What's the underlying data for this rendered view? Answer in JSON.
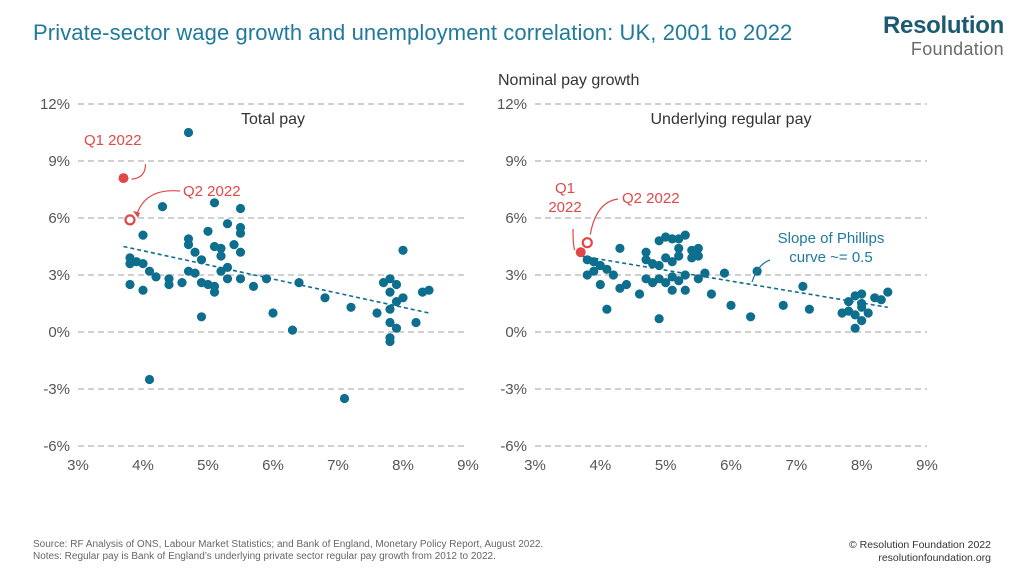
{
  "header": {
    "title": "Private-sector wage growth and unemployment correlation: UK, 2001 to 2022",
    "logo_line1": "Resolution",
    "logo_line2": "Foundation"
  },
  "shared_ylabel": "Nominal pay growth",
  "footer": {
    "source": "Source:  RF Analysis of ONS, Labour Market Statistics; and Bank of England, Monetary Policy Report, August 2022.",
    "notes": "Notes: Regular pay is Bank of England’s underlying private sector regular pay growth from 2012 to 2022.",
    "copyright": "© Resolution Foundation 2022",
    "website": "resolutionfoundation.org"
  },
  "colors": {
    "point": "#0e6e8e",
    "highlight": "#e04848",
    "trend": "#0e6e8e",
    "grid": "#b5b5b5",
    "axis_text": "#555555",
    "title": "#1f7a9c"
  },
  "chart_data": [
    {
      "type": "scatter",
      "title": "Total pay",
      "xlabel": "",
      "ylabel": "",
      "xlim": [
        3,
        9
      ],
      "ylim": [
        -6,
        12
      ],
      "x_ticks": [
        3,
        4,
        5,
        6,
        7,
        8,
        9
      ],
      "x_tick_labels": [
        "3%",
        "4%",
        "5%",
        "6%",
        "7%",
        "8%",
        "9%"
      ],
      "y_ticks": [
        -6,
        -3,
        0,
        3,
        6,
        9,
        12
      ],
      "y_tick_labels": [
        "-6%",
        "-3%",
        "0%",
        "3%",
        "6%",
        "9%",
        "12%"
      ],
      "grid": "horizontal dashed",
      "points": [
        [
          4.7,
          10.5
        ],
        [
          4.3,
          6.6
        ],
        [
          5.1,
          6.8
        ],
        [
          5.5,
          6.5
        ],
        [
          5.3,
          5.7
        ],
        [
          5.5,
          5.5
        ],
        [
          5.5,
          5.2
        ],
        [
          5.0,
          5.3
        ],
        [
          4.7,
          4.9
        ],
        [
          4.7,
          4.6
        ],
        [
          4.8,
          4.2
        ],
        [
          4.9,
          3.8
        ],
        [
          5.1,
          4.5
        ],
        [
          5.2,
          4.4
        ],
        [
          5.2,
          4.0
        ],
        [
          5.4,
          4.6
        ],
        [
          5.5,
          4.2
        ],
        [
          5.3,
          3.4
        ],
        [
          4.0,
          5.1
        ],
        [
          3.8,
          3.9
        ],
        [
          3.9,
          3.7
        ],
        [
          4.0,
          3.6
        ],
        [
          3.8,
          3.6
        ],
        [
          4.1,
          3.2
        ],
        [
          4.2,
          2.9
        ],
        [
          4.4,
          2.8
        ],
        [
          4.4,
          2.5
        ],
        [
          4.6,
          2.6
        ],
        [
          4.7,
          3.2
        ],
        [
          4.8,
          3.1
        ],
        [
          4.9,
          2.6
        ],
        [
          5.0,
          2.5
        ],
        [
          5.1,
          2.4
        ],
        [
          5.1,
          2.1
        ],
        [
          5.3,
          2.8
        ],
        [
          5.2,
          3.2
        ],
        [
          5.5,
          2.8
        ],
        [
          5.7,
          2.4
        ],
        [
          5.9,
          2.8
        ],
        [
          6.0,
          1.0
        ],
        [
          6.4,
          2.6
        ],
        [
          3.8,
          2.5
        ],
        [
          4.0,
          2.2
        ],
        [
          4.9,
          0.8
        ],
        [
          6.8,
          1.8
        ],
        [
          7.2,
          1.3
        ],
        [
          7.6,
          1.0
        ],
        [
          7.7,
          2.6
        ],
        [
          7.8,
          2.1
        ],
        [
          7.8,
          2.8
        ],
        [
          7.9,
          2.5
        ],
        [
          7.9,
          1.6
        ],
        [
          8.0,
          1.8
        ],
        [
          8.0,
          4.3
        ],
        [
          7.8,
          1.2
        ],
        [
          7.8,
          0.5
        ],
        [
          7.9,
          0.2
        ],
        [
          8.2,
          0.5
        ],
        [
          8.3,
          2.1
        ],
        [
          8.4,
          2.2
        ],
        [
          7.8,
          -0.3
        ],
        [
          7.8,
          -0.5
        ],
        [
          6.3,
          0.1
        ],
        [
          4.1,
          -2.5
        ],
        [
          7.1,
          -3.5
        ]
      ],
      "highlights": [
        {
          "label": "Q1 2022",
          "x": 3.7,
          "y": 8.1,
          "style": "filled"
        },
        {
          "label": "Q2 2022",
          "x": 3.8,
          "y": 5.9,
          "style": "hollow"
        }
      ],
      "trendline": {
        "x": [
          3.7,
          8.4
        ],
        "y": [
          4.5,
          1.0
        ]
      }
    },
    {
      "type": "scatter",
      "title": "Underlying regular pay",
      "xlabel": "",
      "ylabel": "Nominal pay growth",
      "xlim": [
        3,
        9
      ],
      "ylim": [
        -6,
        12
      ],
      "x_ticks": [
        3,
        4,
        5,
        6,
        7,
        8,
        9
      ],
      "x_tick_labels": [
        "3%",
        "4%",
        "5%",
        "6%",
        "7%",
        "8%",
        "9%"
      ],
      "y_ticks": [
        -6,
        -3,
        0,
        3,
        6,
        9,
        12
      ],
      "y_tick_labels": [
        "-6%",
        "-3%",
        "0%",
        "3%",
        "6%",
        "9%",
        "12%"
      ],
      "grid": "horizontal dashed",
      "points": [
        [
          4.9,
          4.8
        ],
        [
          5.0,
          5.0
        ],
        [
          5.1,
          4.9
        ],
        [
          5.2,
          4.9
        ],
        [
          5.3,
          5.1
        ],
        [
          5.2,
          4.4
        ],
        [
          5.4,
          4.3
        ],
        [
          5.5,
          4.4
        ],
        [
          5.5,
          4.0
        ],
        [
          5.4,
          3.9
        ],
        [
          4.3,
          4.4
        ],
        [
          4.7,
          4.2
        ],
        [
          4.7,
          3.8
        ],
        [
          4.8,
          3.6
        ],
        [
          4.9,
          3.5
        ],
        [
          5.0,
          3.9
        ],
        [
          5.1,
          3.7
        ],
        [
          5.2,
          4.0
        ],
        [
          3.8,
          3.8
        ],
        [
          3.9,
          3.7
        ],
        [
          4.0,
          3.5
        ],
        [
          4.1,
          3.3
        ],
        [
          4.2,
          3.0
        ],
        [
          3.9,
          3.2
        ],
        [
          3.8,
          3.0
        ],
        [
          4.4,
          2.5
        ],
        [
          4.3,
          2.3
        ],
        [
          4.7,
          2.8
        ],
        [
          4.8,
          2.6
        ],
        [
          4.9,
          2.8
        ],
        [
          5.0,
          2.6
        ],
        [
          5.1,
          2.9
        ],
        [
          5.2,
          2.7
        ],
        [
          5.3,
          3.0
        ],
        [
          5.5,
          2.8
        ],
        [
          5.6,
          3.1
        ],
        [
          5.9,
          3.1
        ],
        [
          6.4,
          3.2
        ],
        [
          4.6,
          2.0
        ],
        [
          5.1,
          2.2
        ],
        [
          5.3,
          2.2
        ],
        [
          5.7,
          2.0
        ],
        [
          4.0,
          2.5
        ],
        [
          4.1,
          1.2
        ],
        [
          4.9,
          0.7
        ],
        [
          6.0,
          1.4
        ],
        [
          6.3,
          0.8
        ],
        [
          6.8,
          1.4
        ],
        [
          7.1,
          2.4
        ],
        [
          7.2,
          1.2
        ],
        [
          7.7,
          1.0
        ],
        [
          7.8,
          1.1
        ],
        [
          7.8,
          1.6
        ],
        [
          7.9,
          1.9
        ],
        [
          8.0,
          2.0
        ],
        [
          8.0,
          1.5
        ],
        [
          7.9,
          0.9
        ],
        [
          7.9,
          0.2
        ],
        [
          8.0,
          0.6
        ],
        [
          8.1,
          1.0
        ],
        [
          8.2,
          1.8
        ],
        [
          8.3,
          1.7
        ],
        [
          8.4,
          2.1
        ],
        [
          8.0,
          1.3
        ]
      ],
      "highlights": [
        {
          "label": "Q1\n2022",
          "x": 3.7,
          "y": 4.2,
          "style": "filled"
        },
        {
          "label": "Q2 2022",
          "x": 3.8,
          "y": 4.7,
          "style": "hollow"
        }
      ],
      "trendline": {
        "x": [
          3.7,
          8.4
        ],
        "y": [
          4.0,
          1.3
        ]
      },
      "annotation": "Slope of Phillips\ncurve ~= 0.5"
    }
  ]
}
